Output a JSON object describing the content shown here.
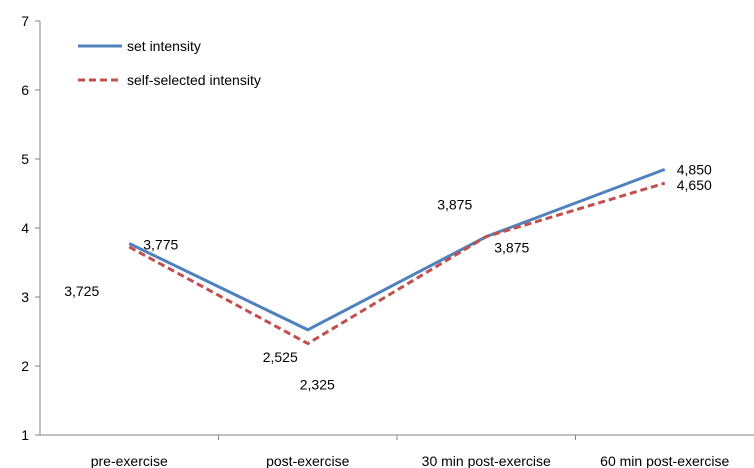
{
  "chart_data": {
    "type": "line",
    "title": "",
    "xlabel": "",
    "ylabel": "",
    "categories": [
      "pre-exercise",
      "post-exercise",
      "30 min post-exercise",
      "60 min post-exercise"
    ],
    "ylim": [
      1,
      7
    ],
    "yticks": [
      "1",
      "2",
      "3",
      "4",
      "5",
      "6",
      "7"
    ],
    "grid": false,
    "legend_position": "top-left",
    "series": [
      {
        "name": "set intensity",
        "values": [
          3.775,
          2.525,
          3.875,
          4.85
        ],
        "labels": [
          "3,775",
          "2,525",
          "3,875",
          "4,850"
        ],
        "color": "#4f81bd",
        "style": "solid"
      },
      {
        "name": "self-selected intensity",
        "values": [
          3.725,
          2.325,
          3.875,
          4.65
        ],
        "labels": [
          "3,725",
          "2,325",
          "3,875",
          "4,650"
        ],
        "color": "#c0504d",
        "style": "dashed"
      }
    ]
  }
}
